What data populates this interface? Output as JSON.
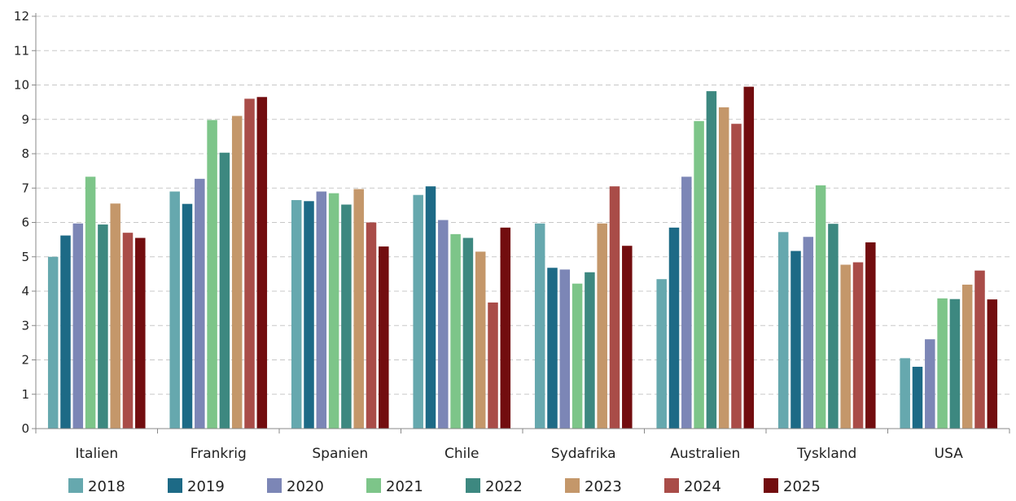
{
  "chart_data": {
    "type": "bar",
    "categories": [
      "Italien",
      "Frankrig",
      "Spanien",
      "Chile",
      "Sydafrika",
      "Australien",
      "Tyskland",
      "USA"
    ],
    "series": [
      {
        "name": "2018",
        "color": "#66A8AE",
        "values": [
          5.0,
          6.9,
          6.65,
          6.8,
          5.97,
          4.35,
          5.72,
          2.05
        ]
      },
      {
        "name": "2019",
        "color": "#1D6A86",
        "values": [
          5.62,
          6.54,
          6.62,
          7.05,
          4.68,
          5.85,
          5.17,
          1.8
        ]
      },
      {
        "name": "2020",
        "color": "#7C86B6",
        "values": [
          5.97,
          7.27,
          6.9,
          6.07,
          4.63,
          7.33,
          5.58,
          2.6
        ]
      },
      {
        "name": "2021",
        "color": "#7DC589",
        "values": [
          7.33,
          8.98,
          6.85,
          5.66,
          4.22,
          8.95,
          7.08,
          3.79
        ]
      },
      {
        "name": "2022",
        "color": "#3D8880",
        "values": [
          5.94,
          8.03,
          6.52,
          5.55,
          4.55,
          9.82,
          5.96,
          3.77
        ]
      },
      {
        "name": "2023",
        "color": "#C4976A",
        "values": [
          6.55,
          9.1,
          6.97,
          5.15,
          5.97,
          9.35,
          4.77,
          4.19
        ]
      },
      {
        "name": "2024",
        "color": "#A94C48",
        "values": [
          5.7,
          9.6,
          6.0,
          3.67,
          7.05,
          8.87,
          4.84,
          4.6
        ]
      },
      {
        "name": "2025",
        "color": "#720D0F",
        "values": [
          5.55,
          9.65,
          5.3,
          5.85,
          5.32,
          9.95,
          5.42,
          3.76
        ]
      }
    ],
    "title": "",
    "xlabel": "",
    "ylabel": "",
    "ylim": [
      0,
      12
    ],
    "yticks": [
      "0",
      "1",
      "2",
      "3",
      "4",
      "5",
      "6",
      "7",
      "8",
      "9",
      "10",
      "11",
      "12"
    ],
    "grid": "horizontal dashed",
    "legend_position": "bottom"
  }
}
